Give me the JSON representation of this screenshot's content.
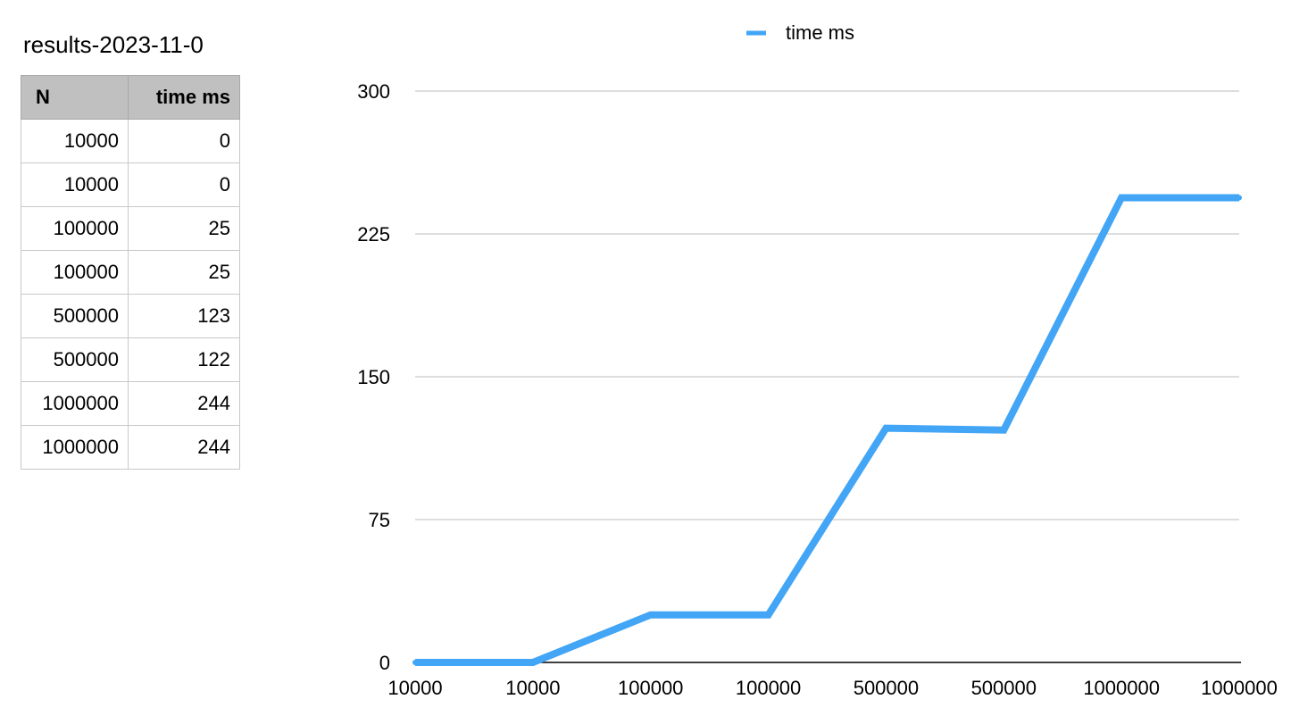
{
  "sheet": {
    "title": "results-2023-11-0"
  },
  "table": {
    "headers": [
      "N",
      "time ms"
    ],
    "rows": [
      [
        "10000",
        "0"
      ],
      [
        "10000",
        "0"
      ],
      [
        "100000",
        "25"
      ],
      [
        "100000",
        "25"
      ],
      [
        "500000",
        "123"
      ],
      [
        "500000",
        "122"
      ],
      [
        "1000000",
        "244"
      ],
      [
        "1000000",
        "244"
      ]
    ]
  },
  "chart_data": {
    "type": "line",
    "categories": [
      "10000",
      "10000",
      "100000",
      "100000",
      "500000",
      "500000",
      "1000000",
      "1000000"
    ],
    "series": [
      {
        "name": "time ms",
        "values": [
          0,
          0,
          25,
          25,
          123,
          122,
          244,
          244
        ],
        "color": "#42a5f5"
      }
    ],
    "yticks": [
      "0",
      "75",
      "150",
      "225",
      "300"
    ],
    "ylim": [
      0,
      300
    ],
    "title": "",
    "xlabel": "",
    "ylabel": "",
    "grid": true,
    "legend": "top-center"
  }
}
